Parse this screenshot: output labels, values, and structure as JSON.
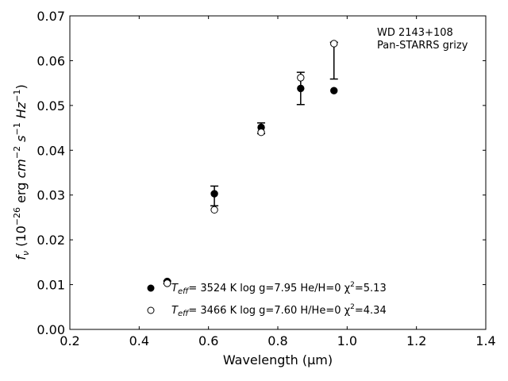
{
  "chart_data": {
    "type": "scatter",
    "xlabel_prefix": "Wavelength (",
    "xlabel_unit": "μm",
    "xlabel_suffix": ")",
    "ylabel": "f_ν (10^-26 erg cm^-2 s^-1 Hz^-1)",
    "xlim": [
      0.2,
      1.4
    ],
    "ylim": [
      0.0,
      0.07
    ],
    "x_ticks": [
      0.2,
      0.4,
      0.6,
      0.8,
      1.0,
      1.2,
      1.4
    ],
    "x_tick_labels": [
      "0.2",
      "0.4",
      "0.6",
      "0.8",
      "1.0",
      "1.2",
      "1.4"
    ],
    "y_ticks": [
      0.0,
      0.01,
      0.02,
      0.03,
      0.04,
      0.05,
      0.06,
      0.07
    ],
    "y_tick_labels": [
      "0.00",
      "0.01",
      "0.02",
      "0.03",
      "0.04",
      "0.05",
      "0.06",
      "0.07"
    ],
    "grid": false,
    "annotations": [
      "WD 2143+108",
      "Pan-STARRS grizy"
    ],
    "observed": {
      "x": [
        0.481,
        0.617,
        0.752,
        0.866,
        0.962
      ],
      "y": [
        0.0105,
        0.0298,
        0.0449,
        0.0538,
        0.06
      ],
      "yerr": [
        0.0003,
        0.0022,
        0.0012,
        0.0036,
        0.0041
      ]
    },
    "series": [
      {
        "name": "T_eff= 3524 K  log g=7.95  He/H=0  χ²=5.13",
        "marker": "filled-circle",
        "x": [
          0.481,
          0.617,
          0.752,
          0.866,
          0.962
        ],
        "y": [
          0.0107,
          0.0303,
          0.0451,
          0.0538,
          0.0533
        ]
      },
      {
        "name": "T_eff= 3466 K  log g=7.60  H/He=0  χ²=4.34",
        "marker": "open-circle",
        "x": [
          0.481,
          0.617,
          0.752,
          0.866,
          0.962
        ],
        "y": [
          0.0103,
          0.0267,
          0.044,
          0.0562,
          0.0638
        ]
      }
    ],
    "legend": {
      "placement": "lower-center",
      "entries": [
        {
          "t_label": "T",
          "t_sub": "eff",
          "rest": "=  3524 K  log g=7.95  He/H=0  χ",
          "chi_sup": "2",
          "chi_val": "=5.13"
        },
        {
          "t_label": "T",
          "t_sub": "eff",
          "rest": "=  3466 K  log g=7.60  H/He=0  χ",
          "chi_sup": "2",
          "chi_val": "=4.34"
        }
      ]
    },
    "colors": {
      "marker": "#000000",
      "background": "#ffffff"
    }
  }
}
